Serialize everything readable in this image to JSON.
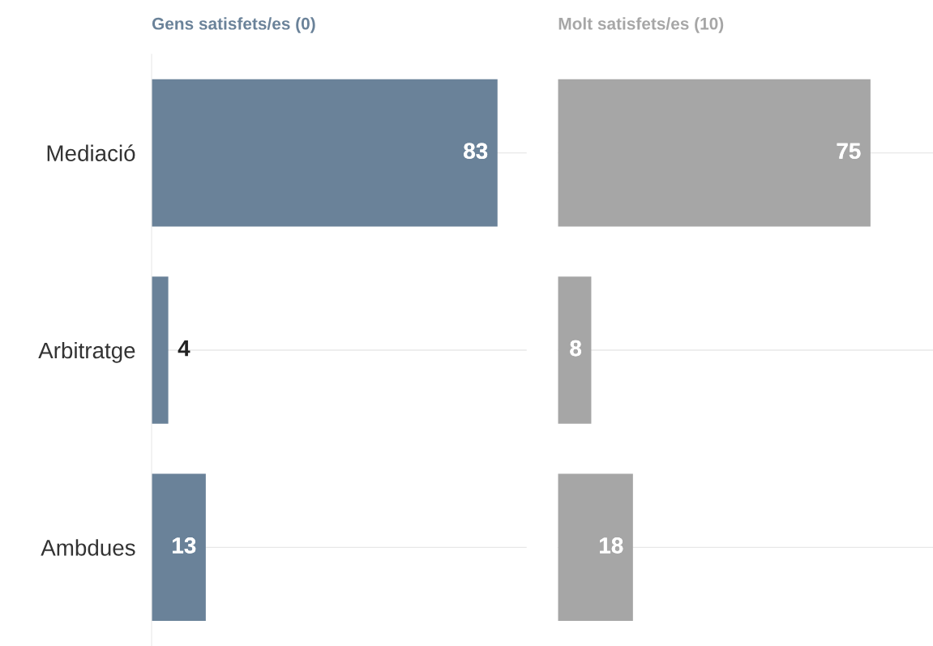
{
  "chart_data": [
    {
      "type": "bar",
      "orientation": "horizontal",
      "title": "Gens satisfets/es (0)",
      "categories": [
        "Mediació",
        "Arbitratge",
        "Ambdues"
      ],
      "series": [
        {
          "color": "#6a8299",
          "values": [
            83,
            4,
            13
          ]
        }
      ],
      "data_labels": true,
      "xlim": [
        0,
        90
      ],
      "grid": "y",
      "tick_labels": "y"
    },
    {
      "type": "bar",
      "orientation": "horizontal",
      "title": "Molt satisfets/es (10)",
      "categories": [
        null,
        null,
        null
      ],
      "series": [
        {
          "color": "#a6a6a6",
          "values": [
            75,
            8,
            18
          ]
        }
      ],
      "data_labels": true,
      "xlim": [
        0,
        90
      ],
      "grid": "y",
      "tick_labels": false
    }
  ]
}
